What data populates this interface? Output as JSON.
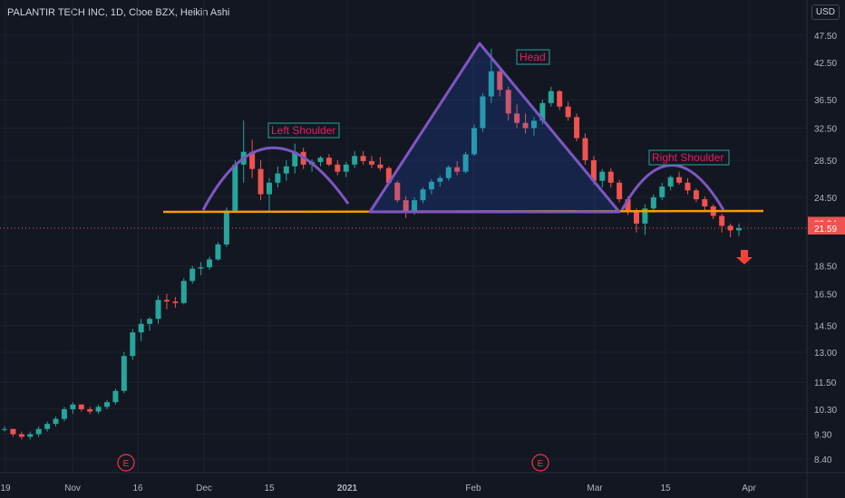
{
  "header": {
    "title": "PALANTIR TECH INC, 1D, Cboe BZX, Heikin Ashi",
    "currency": "USD"
  },
  "chart_data": {
    "type": "candlestick",
    "x_labels": [
      "19",
      "Nov",
      "16",
      "Dec",
      "15",
      "2021",
      "Feb",
      "Mar",
      "15",
      "Apr"
    ],
    "y_labels": [
      "47.50",
      "42.50",
      "36.50",
      "32.50",
      "28.50",
      "24.50",
      "18.50",
      "16.50",
      "14.50",
      "13.00",
      "11.50",
      "10.30",
      "9.30",
      "8.40"
    ],
    "last_price": "21.59",
    "neckline_price": "22.04",
    "annotations": [
      "Left Shoulder",
      "Head",
      "Right Shoulder"
    ],
    "event_markers": [
      "E",
      "E"
    ],
    "colors": {
      "up": "#26a69a",
      "down": "#ef5350",
      "pattern": "#7e57c2",
      "neckline": "#ff9800",
      "label_text": "#e91e63",
      "label_border": "#26a69a",
      "arrow": "#f44336"
    },
    "candles": [
      [
        9.5,
        9.6,
        9.4,
        9.5
      ],
      [
        9.5,
        9.5,
        9.2,
        9.3
      ],
      [
        9.3,
        9.4,
        9.1,
        9.2
      ],
      [
        9.2,
        9.4,
        9.1,
        9.3
      ],
      [
        9.3,
        9.6,
        9.2,
        9.5
      ],
      [
        9.5,
        9.8,
        9.4,
        9.7
      ],
      [
        9.7,
        10.0,
        9.6,
        9.9
      ],
      [
        9.9,
        10.4,
        9.8,
        10.3
      ],
      [
        10.3,
        10.6,
        10.1,
        10.5
      ],
      [
        10.5,
        10.5,
        10.2,
        10.3
      ],
      [
        10.3,
        10.4,
        10.1,
        10.2
      ],
      [
        10.2,
        10.5,
        10.1,
        10.4
      ],
      [
        10.4,
        10.7,
        10.3,
        10.6
      ],
      [
        10.6,
        11.2,
        10.5,
        11.1
      ],
      [
        11.1,
        13.0,
        11.0,
        12.8
      ],
      [
        12.8,
        14.3,
        12.6,
        14.1
      ],
      [
        14.1,
        14.9,
        13.6,
        14.6
      ],
      [
        14.6,
        15.0,
        14.2,
        14.9
      ],
      [
        14.9,
        16.4,
        14.6,
        16.1
      ],
      [
        16.1,
        16.5,
        15.5,
        16.0
      ],
      [
        16.0,
        16.3,
        15.6,
        15.9
      ],
      [
        15.9,
        17.6,
        15.8,
        17.4
      ],
      [
        17.4,
        18.5,
        17.2,
        18.3
      ],
      [
        18.3,
        18.8,
        17.8,
        18.4
      ],
      [
        18.4,
        19.2,
        18.2,
        19.0
      ],
      [
        19.0,
        20.4,
        18.9,
        20.2
      ],
      [
        20.2,
        23.5,
        20.0,
        23.2
      ],
      [
        23.2,
        28.5,
        23.0,
        28.0
      ],
      [
        28.0,
        33.5,
        26.0,
        29.5
      ],
      [
        29.5,
        31.0,
        26.5,
        27.5
      ],
      [
        27.5,
        28.5,
        24.2,
        24.8
      ],
      [
        24.8,
        26.5,
        23.2,
        26.0
      ],
      [
        26.0,
        27.8,
        25.5,
        27.0
      ],
      [
        27.0,
        28.5,
        26.2,
        27.8
      ],
      [
        27.8,
        30.5,
        27.0,
        29.5
      ],
      [
        29.5,
        30.0,
        27.5,
        28.0
      ],
      [
        28.0,
        28.6,
        27.2,
        28.3
      ],
      [
        28.3,
        29.0,
        27.8,
        28.8
      ],
      [
        28.8,
        29.2,
        27.8,
        28.0
      ],
      [
        28.0,
        28.5,
        26.8,
        27.2
      ],
      [
        27.2,
        28.3,
        26.6,
        28.0
      ],
      [
        28.0,
        29.6,
        27.6,
        29.0
      ],
      [
        29.0,
        29.6,
        28.0,
        28.4
      ],
      [
        28.4,
        29.0,
        27.6,
        28.0
      ],
      [
        28.0,
        28.9,
        27.3,
        27.6
      ],
      [
        27.6,
        27.8,
        25.8,
        26.0
      ],
      [
        26.0,
        26.2,
        24.0,
        24.2
      ],
      [
        24.2,
        24.6,
        22.5,
        23.2
      ],
      [
        23.2,
        24.5,
        22.8,
        24.2
      ],
      [
        24.2,
        25.5,
        23.9,
        25.3
      ],
      [
        25.3,
        26.4,
        24.8,
        26.1
      ],
      [
        26.1,
        26.8,
        25.6,
        26.5
      ],
      [
        26.5,
        27.9,
        26.2,
        27.7
      ],
      [
        27.7,
        28.4,
        26.8,
        27.2
      ],
      [
        27.2,
        29.5,
        27.0,
        29.2
      ],
      [
        29.2,
        33.0,
        29.0,
        32.5
      ],
      [
        32.5,
        37.5,
        32.0,
        37.0
      ],
      [
        37.0,
        45.0,
        36.0,
        41.0
      ],
      [
        41.0,
        41.5,
        37.0,
        38.0
      ],
      [
        38.0,
        38.5,
        33.5,
        34.5
      ],
      [
        34.5,
        35.8,
        32.5,
        33.2
      ],
      [
        33.2,
        34.5,
        31.8,
        32.5
      ],
      [
        32.5,
        34.0,
        31.5,
        33.5
      ],
      [
        33.5,
        36.5,
        33.0,
        36.0
      ],
      [
        36.0,
        38.5,
        35.5,
        37.8
      ],
      [
        37.8,
        38.0,
        35.0,
        35.5
      ],
      [
        35.5,
        36.2,
        33.5,
        34.0
      ],
      [
        34.0,
        34.5,
        30.8,
        31.2
      ],
      [
        31.2,
        31.8,
        28.0,
        28.5
      ],
      [
        28.5,
        29.0,
        25.8,
        26.2
      ],
      [
        26.2,
        27.5,
        25.5,
        27.2
      ],
      [
        27.2,
        27.6,
        25.5,
        26.0
      ],
      [
        26.0,
        26.3,
        24.0,
        24.3
      ],
      [
        24.3,
        24.6,
        22.8,
        23.1
      ],
      [
        23.1,
        23.4,
        21.2,
        22.0
      ],
      [
        22.0,
        23.8,
        21.0,
        23.4
      ],
      [
        23.4,
        24.8,
        23.0,
        24.5
      ],
      [
        24.5,
        26.0,
        24.2,
        25.6
      ],
      [
        25.6,
        26.8,
        25.2,
        26.6
      ],
      [
        26.6,
        27.2,
        25.8,
        26.0
      ],
      [
        26.0,
        26.5,
        24.8,
        25.2
      ],
      [
        25.2,
        25.4,
        24.0,
        24.3
      ],
      [
        24.3,
        24.6,
        23.2,
        23.6
      ],
      [
        23.6,
        23.8,
        22.4,
        22.7
      ],
      [
        22.7,
        22.9,
        21.2,
        21.8
      ],
      [
        21.8,
        22.0,
        20.8,
        21.4
      ],
      [
        21.4,
        22.0,
        20.9,
        21.6
      ]
    ]
  }
}
